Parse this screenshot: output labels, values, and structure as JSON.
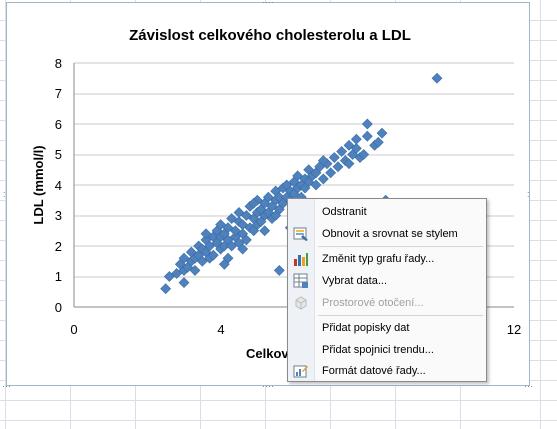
{
  "chart": {
    "title": "Závislost celkového cholesterolu a LDL",
    "y_axis_title": "LDL (mmol/l)",
    "x_axis_title_visible": "Celkov"
  },
  "chart_data": {
    "type": "scatter",
    "title": "Závislost celkového cholesterolu a LDL",
    "xlabel": "Celkov",
    "ylabel": "LDL (mmol/l)",
    "xlim": [
      0,
      12
    ],
    "ylim": [
      0,
      8
    ],
    "x_ticks": [
      "0",
      "4",
      "12"
    ],
    "y_ticks": [
      "0",
      "1",
      "2",
      "3",
      "4",
      "5",
      "6",
      "7",
      "8"
    ],
    "grid": "horizontal",
    "marker": "diamond",
    "color": "#4f81bd",
    "points": [
      [
        2.5,
        0.6
      ],
      [
        2.6,
        1.0
      ],
      [
        2.8,
        1.1
      ],
      [
        2.9,
        1.4
      ],
      [
        3.0,
        1.2
      ],
      [
        3.0,
        1.6
      ],
      [
        3.1,
        1.3
      ],
      [
        3.2,
        1.5
      ],
      [
        3.2,
        1.8
      ],
      [
        3.3,
        1.6
      ],
      [
        3.3,
        1.2
      ],
      [
        3.4,
        1.7
      ],
      [
        3.4,
        2.0
      ],
      [
        3.5,
        1.5
      ],
      [
        3.5,
        1.9
      ],
      [
        3.6,
        1.8
      ],
      [
        3.6,
        2.2
      ],
      [
        3.7,
        1.6
      ],
      [
        3.7,
        2.0
      ],
      [
        3.8,
        2.3
      ],
      [
        3.8,
        1.7
      ],
      [
        3.9,
        2.1
      ],
      [
        3.9,
        2.5
      ],
      [
        4.0,
        1.9
      ],
      [
        4.0,
        2.3
      ],
      [
        4.0,
        2.7
      ],
      [
        4.1,
        2.0
      ],
      [
        4.1,
        2.4
      ],
      [
        4.2,
        2.2
      ],
      [
        4.2,
        2.6
      ],
      [
        4.2,
        1.6
      ],
      [
        4.3,
        2.0
      ],
      [
        4.3,
        2.9
      ],
      [
        4.4,
        2.3
      ],
      [
        4.4,
        2.5
      ],
      [
        4.5,
        2.1
      ],
      [
        4.5,
        2.8
      ],
      [
        4.5,
        3.1
      ],
      [
        4.6,
        2.4
      ],
      [
        4.6,
        2.7
      ],
      [
        4.7,
        2.2
      ],
      [
        4.7,
        3.0
      ],
      [
        4.8,
        2.6
      ],
      [
        4.8,
        3.3
      ],
      [
        4.9,
        2.5
      ],
      [
        4.9,
        2.9
      ],
      [
        5.0,
        2.7
      ],
      [
        5.0,
        3.1
      ],
      [
        5.0,
        3.5
      ],
      [
        5.1,
        2.8
      ],
      [
        5.1,
        3.2
      ],
      [
        5.2,
        3.0
      ],
      [
        5.2,
        3.4
      ],
      [
        5.2,
        2.5
      ],
      [
        5.3,
        3.1
      ],
      [
        5.3,
        3.6
      ],
      [
        5.4,
        3.3
      ],
      [
        5.4,
        2.9
      ],
      [
        5.5,
        3.5
      ],
      [
        5.5,
        3.8
      ],
      [
        5.6,
        3.2
      ],
      [
        5.6,
        3.6
      ],
      [
        5.7,
        3.4
      ],
      [
        5.7,
        3.9
      ],
      [
        5.8,
        3.6
      ],
      [
        5.8,
        4.0
      ],
      [
        5.9,
        3.5
      ],
      [
        5.9,
        3.8
      ],
      [
        6.0,
        3.7
      ],
      [
        6.0,
        4.1
      ],
      [
        6.1,
        3.9
      ],
      [
        6.1,
        4.3
      ],
      [
        6.2,
        4.0
      ],
      [
        6.2,
        3.6
      ],
      [
        6.3,
        4.2
      ],
      [
        6.4,
        4.1
      ],
      [
        6.4,
        4.5
      ],
      [
        6.5,
        4.3
      ],
      [
        6.6,
        4.4
      ],
      [
        6.6,
        4.0
      ],
      [
        6.7,
        4.6
      ],
      [
        6.8,
        4.2
      ],
      [
        6.9,
        4.7
      ],
      [
        7.0,
        4.4
      ],
      [
        7.1,
        4.9
      ],
      [
        7.2,
        4.6
      ],
      [
        7.3,
        5.1
      ],
      [
        7.4,
        4.8
      ],
      [
        7.5,
        5.3
      ],
      [
        7.6,
        5.0
      ],
      [
        7.7,
        5.5
      ],
      [
        7.7,
        5.2
      ],
      [
        7.8,
        4.9
      ],
      [
        7.9,
        5.0
      ],
      [
        8.0,
        5.6
      ],
      [
        8.0,
        6.0
      ],
      [
        8.2,
        5.3
      ],
      [
        8.3,
        5.4
      ],
      [
        8.4,
        5.7
      ],
      [
        5.6,
        1.2
      ],
      [
        6.2,
        1.5
      ],
      [
        6.5,
        2.8
      ],
      [
        7.1,
        2.9
      ],
      [
        7.3,
        3.3
      ],
      [
        8.5,
        3.5
      ],
      [
        9.9,
        7.5
      ],
      [
        3.0,
        0.8
      ],
      [
        4.1,
        1.4
      ],
      [
        4.6,
        1.9
      ],
      [
        5.9,
        2.6
      ],
      [
        3.6,
        2.4
      ],
      [
        4.9,
        3.4
      ],
      [
        5.5,
        3.0
      ],
      [
        6.3,
        3.9
      ],
      [
        6.8,
        4.8
      ],
      [
        7.5,
        4.7
      ]
    ]
  },
  "context_menu": {
    "items": [
      {
        "label": "Odstranit",
        "icon": "none",
        "disabled": false
      },
      {
        "label": "Obnovit a srovnat se stylem",
        "icon": "reset-style-icon",
        "disabled": false
      },
      {
        "label": "Změnit typ grafu řady...",
        "icon": "chart-type-icon",
        "disabled": false
      },
      {
        "label": "Vybrat data...",
        "icon": "select-data-icon",
        "disabled": false
      },
      {
        "label": "Prostorové otočení...",
        "icon": "3d-rotation-icon",
        "disabled": true
      },
      {
        "label": "Přidat popisky dat",
        "icon": "none",
        "disabled": false
      },
      {
        "label": "Přidat spojnici trendu...",
        "icon": "none",
        "disabled": false
      },
      {
        "label": "Formát datové řady...",
        "icon": "format-series-icon",
        "disabled": false
      }
    ]
  }
}
